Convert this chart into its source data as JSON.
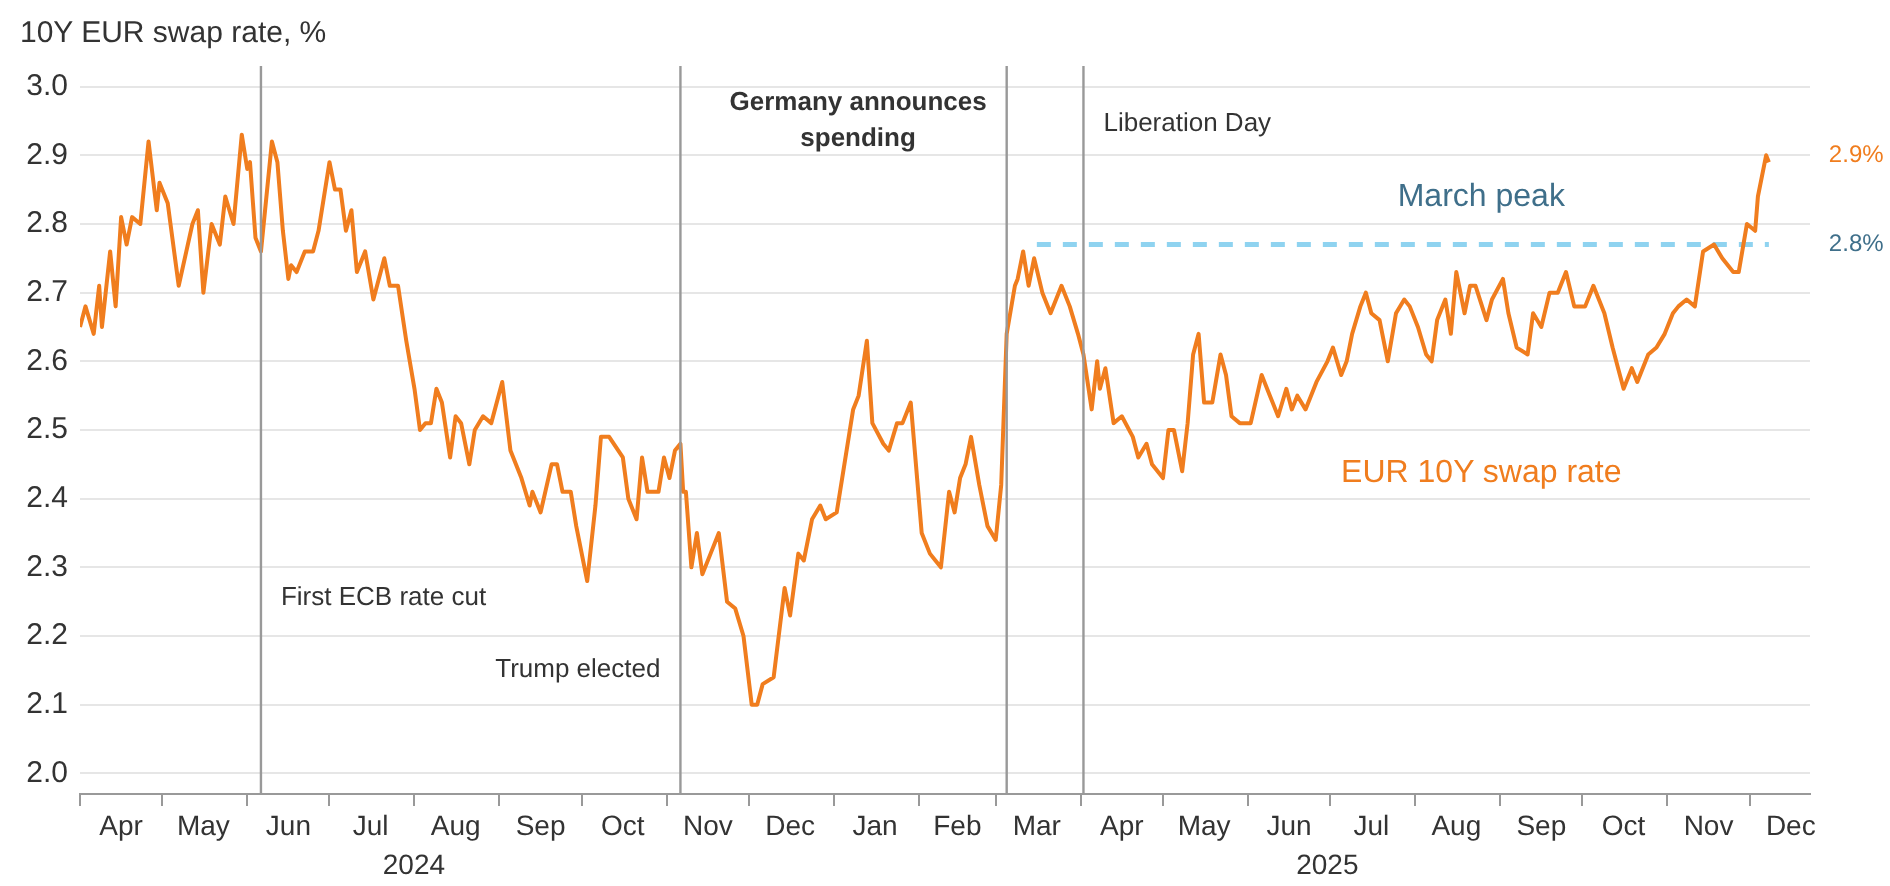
{
  "chart_data": {
    "type": "line",
    "ylabel": "10Y EUR swap rate, %",
    "legend": false,
    "grid": "y",
    "xlim": [
      "2024-04-01",
      "2025-12-23"
    ],
    "ylim": [
      1.97,
      3.03
    ],
    "yticks": [
      {
        "value": 2,
        "label": "2.0"
      },
      2.1,
      2.2,
      2.3,
      2.4,
      2.5,
      2.6,
      2.7,
      2.8,
      2.9,
      {
        "value": 3,
        "label": "3.0"
      }
    ],
    "xticks": [
      {
        "value": "2024-04-01",
        "label": null
      },
      {
        "value": "2024-04-16",
        "label": "Apr"
      },
      {
        "value": "2024-05-01",
        "label": null
      },
      {
        "value": "2024-05-16",
        "label": "May"
      },
      {
        "value": "2024-06-01",
        "label": null
      },
      {
        "value": "2024-06-16",
        "label": "Jun"
      },
      {
        "value": "2024-07-01",
        "label": null
      },
      {
        "value": "2024-07-16",
        "label": "Jul"
      },
      {
        "value": "2024-08-01",
        "label": null
      },
      {
        "value": "2024-08-16",
        "label": "Aug"
      },
      {
        "value": "2024-09-01",
        "label": null
      },
      {
        "value": "2024-09-16",
        "label": "Sep"
      },
      {
        "value": "2024-10-01",
        "label": null
      },
      {
        "value": "2024-10-16",
        "label": "Oct"
      },
      {
        "value": "2024-11-01",
        "label": null
      },
      {
        "value": "2024-11-16",
        "label": "Nov"
      },
      {
        "value": "2024-12-01",
        "label": null
      },
      {
        "value": "2024-12-16",
        "label": "Dec"
      },
      {
        "value": "2025-01-01",
        "label": null
      },
      {
        "value": "2025-01-16",
        "label": "Jan"
      },
      {
        "value": "2025-02-01",
        "label": null
      },
      {
        "value": "2025-02-15",
        "label": "Feb"
      },
      {
        "value": "2025-03-01",
        "label": null
      },
      {
        "value": "2025-03-16",
        "label": "Mar"
      },
      {
        "value": "2025-04-01",
        "label": null
      },
      {
        "value": "2025-04-16",
        "label": "Apr"
      },
      {
        "value": "2025-05-01",
        "label": null
      },
      {
        "value": "2025-05-16",
        "label": "May"
      },
      {
        "value": "2025-06-01",
        "label": null
      },
      {
        "value": "2025-06-16",
        "label": "Jun"
      },
      {
        "value": "2025-07-01",
        "label": null
      },
      {
        "value": "2025-07-16",
        "label": "Jul"
      },
      {
        "value": "2025-08-01",
        "label": null
      },
      {
        "value": "2025-08-16",
        "label": "Aug"
      },
      {
        "value": "2025-09-01",
        "label": null
      },
      {
        "value": "2025-09-16",
        "label": "Sep"
      },
      {
        "value": "2025-10-01",
        "label": null
      },
      {
        "value": "2025-10-16",
        "label": "Oct"
      },
      {
        "value": "2025-11-01",
        "label": null
      },
      {
        "value": "2025-11-16",
        "label": "Nov"
      },
      {
        "value": "2025-12-01",
        "label": null
      },
      {
        "value": "2025-12-16",
        "label": "Dec"
      }
    ],
    "ref_lines": [
      {
        "axis": "x",
        "value": "2024-06-06",
        "label": "First ECB rate cut",
        "color": "#999999"
      },
      {
        "axis": "x",
        "value": "2024-11-06",
        "label": "Trump elected",
        "color": "#999999"
      },
      {
        "axis": "x",
        "value": "2025-03-05",
        "label": "Germany announces spending",
        "color": "#999999"
      },
      {
        "axis": "x",
        "value": "2025-04-02",
        "label": "Liberation Day",
        "color": "#999999"
      }
    ],
    "annotations": [
      {
        "text": "2.9%",
        "x": "2025-12-08",
        "y": 2.9
      },
      {
        "text": "2.8%",
        "x": "2025-12-08",
        "y": 2.77
      },
      "2024",
      "2025"
    ],
    "series": [
      {
        "name": "EUR 10Y swap rate",
        "color": "#f07d1e",
        "line_style": "solid",
        "x": [
          "2024-04-01",
          "2024-04-03",
          "2024-04-06",
          "2024-04-08",
          "2024-04-09",
          "2024-04-12",
          "2024-04-14",
          "2024-04-16",
          "2024-04-18",
          "2024-04-20",
          "2024-04-23",
          "2024-04-26",
          "2024-04-29",
          "2024-04-30",
          "2024-05-03",
          "2024-05-07",
          "2024-05-12",
          "2024-05-14",
          "2024-05-16",
          "2024-05-19",
          "2024-05-22",
          "2024-05-24",
          "2024-05-27",
          "2024-05-30",
          "2024-06-01",
          "2024-06-02",
          "2024-06-04",
          "2024-06-06",
          "2024-06-10",
          "2024-06-12",
          "2024-06-14",
          "2024-06-16",
          "2024-06-17",
          "2024-06-19",
          "2024-06-22",
          "2024-06-25",
          "2024-06-27",
          "2024-07-01",
          "2024-07-03",
          "2024-07-05",
          "2024-07-07",
          "2024-07-09",
          "2024-07-11",
          "2024-07-14",
          "2024-07-17",
          "2024-07-21",
          "2024-07-23",
          "2024-07-26",
          "2024-07-29",
          "2024-08-01",
          "2024-08-03",
          "2024-08-05",
          "2024-08-07",
          "2024-08-09",
          "2024-08-11",
          "2024-08-14",
          "2024-08-16",
          "2024-08-18",
          "2024-08-21",
          "2024-08-23",
          "2024-08-26",
          "2024-08-29",
          "2024-09-02",
          "2024-09-05",
          "2024-09-09",
          "2024-09-12",
          "2024-09-13",
          "2024-09-16",
          "2024-09-20",
          "2024-09-22",
          "2024-09-24",
          "2024-09-27",
          "2024-09-29",
          "2024-10-03",
          "2024-10-06",
          "2024-10-08",
          "2024-10-11",
          "2024-10-16",
          "2024-10-18",
          "2024-10-21",
          "2024-10-23",
          "2024-10-25",
          "2024-10-29",
          "2024-10-31",
          "2024-11-02",
          "2024-11-04",
          "2024-11-06",
          "2024-11-07",
          "2024-11-08",
          "2024-11-10",
          "2024-11-12",
          "2024-11-14",
          "2024-11-17",
          "2024-11-20",
          "2024-11-23",
          "2024-11-26",
          "2024-11-29",
          "2024-12-02",
          "2024-12-04",
          "2024-12-06",
          "2024-12-10",
          "2024-12-14",
          "2024-12-16",
          "2024-12-19",
          "2024-12-21",
          "2024-12-24",
          "2024-12-27",
          "2024-12-29",
          "2025-01-02",
          "2025-01-04",
          "2025-01-08",
          "2025-01-10",
          "2025-01-13",
          "2025-01-15",
          "2025-01-19",
          "2025-01-21",
          "2025-01-24",
          "2025-01-26",
          "2025-01-29",
          "2025-02-02",
          "2025-02-05",
          "2025-02-07",
          "2025-02-09",
          "2025-02-12",
          "2025-02-14",
          "2025-02-16",
          "2025-02-18",
          "2025-02-20",
          "2025-02-23",
          "2025-02-26",
          "2025-03-01",
          "2025-03-03",
          "2025-03-05",
          "2025-03-08",
          "2025-03-09",
          "2025-03-11",
          "2025-03-13",
          "2025-03-15",
          "2025-03-18",
          "2025-03-21",
          "2025-03-25",
          "2025-03-28",
          "2025-03-31",
          "2025-04-02",
          "2025-04-05",
          "2025-04-07",
          "2025-04-08",
          "2025-04-10",
          "2025-04-13",
          "2025-04-16",
          "2025-04-20",
          "2025-04-22",
          "2025-04-25",
          "2025-04-27",
          "2025-05-01",
          "2025-05-03",
          "2025-05-05",
          "2025-05-08",
          "2025-05-10",
          "2025-05-12",
          "2025-05-14",
          "2025-05-16",
          "2025-05-19",
          "2025-05-22",
          "2025-05-24",
          "2025-05-26",
          "2025-05-29",
          "2025-06-02",
          "2025-06-06",
          "2025-06-09",
          "2025-06-12",
          "2025-06-15",
          "2025-06-17",
          "2025-06-19",
          "2025-06-22",
          "2025-06-26",
          "2025-06-30",
          "2025-07-02",
          "2025-07-05",
          "2025-07-07",
          "2025-07-09",
          "2025-07-12",
          "2025-07-14",
          "2025-07-16",
          "2025-07-19",
          "2025-07-22",
          "2025-07-25",
          "2025-07-28",
          "2025-07-30",
          "2025-08-02",
          "2025-08-05",
          "2025-08-07",
          "2025-08-09",
          "2025-08-12",
          "2025-08-14",
          "2025-08-16",
          "2025-08-19",
          "2025-08-21",
          "2025-08-23",
          "2025-08-27",
          "2025-08-29",
          "2025-09-02",
          "2025-09-04",
          "2025-09-07",
          "2025-09-11",
          "2025-09-13",
          "2025-09-16",
          "2025-09-19",
          "2025-09-22",
          "2025-09-25",
          "2025-09-28",
          "2025-10-02",
          "2025-10-05",
          "2025-10-09",
          "2025-10-12",
          "2025-10-14",
          "2025-10-16",
          "2025-10-19",
          "2025-10-21",
          "2025-10-25",
          "2025-10-28",
          "2025-10-31",
          "2025-11-03",
          "2025-11-05",
          "2025-11-08",
          "2025-11-11",
          "2025-11-14",
          "2025-11-18",
          "2025-11-21",
          "2025-11-25",
          "2025-11-27",
          "2025-11-30",
          "2025-12-03",
          "2025-12-04",
          "2025-12-07",
          "2025-12-08"
        ],
        "values": [
          2.65,
          2.68,
          2.64,
          2.71,
          2.65,
          2.76,
          2.68,
          2.81,
          2.77,
          2.81,
          2.8,
          2.92,
          2.82,
          2.86,
          2.83,
          2.71,
          2.8,
          2.82,
          2.7,
          2.8,
          2.77,
          2.84,
          2.8,
          2.93,
          2.88,
          2.89,
          2.78,
          2.76,
          2.92,
          2.89,
          2.79,
          2.72,
          2.74,
          2.73,
          2.76,
          2.76,
          2.79,
          2.89,
          2.85,
          2.85,
          2.79,
          2.82,
          2.73,
          2.76,
          2.69,
          2.75,
          2.71,
          2.71,
          2.63,
          2.56,
          2.5,
          2.51,
          2.51,
          2.56,
          2.54,
          2.46,
          2.52,
          2.51,
          2.45,
          2.5,
          2.52,
          2.51,
          2.57,
          2.47,
          2.43,
          2.39,
          2.41,
          2.38,
          2.45,
          2.45,
          2.41,
          2.41,
          2.36,
          2.28,
          2.39,
          2.49,
          2.49,
          2.46,
          2.4,
          2.37,
          2.46,
          2.41,
          2.41,
          2.46,
          2.43,
          2.47,
          2.48,
          2.41,
          2.41,
          2.3,
          2.35,
          2.29,
          2.32,
          2.35,
          2.25,
          2.24,
          2.2,
          2.1,
          2.1,
          2.13,
          2.14,
          2.27,
          2.23,
          2.32,
          2.31,
          2.37,
          2.39,
          2.37,
          2.38,
          2.43,
          2.53,
          2.55,
          2.63,
          2.51,
          2.48,
          2.47,
          2.51,
          2.51,
          2.54,
          2.35,
          2.32,
          2.31,
          2.3,
          2.41,
          2.38,
          2.43,
          2.45,
          2.49,
          2.42,
          2.36,
          2.34,
          2.42,
          2.64,
          2.71,
          2.72,
          2.76,
          2.71,
          2.75,
          2.7,
          2.67,
          2.71,
          2.68,
          2.64,
          2.61,
          2.53,
          2.6,
          2.56,
          2.59,
          2.51,
          2.52,
          2.49,
          2.46,
          2.48,
          2.45,
          2.43,
          2.5,
          2.5,
          2.44,
          2.51,
          2.61,
          2.64,
          2.54,
          2.54,
          2.61,
          2.58,
          2.52,
          2.51,
          2.51,
          2.58,
          2.55,
          2.52,
          2.56,
          2.53,
          2.55,
          2.53,
          2.57,
          2.6,
          2.62,
          2.58,
          2.6,
          2.64,
          2.68,
          2.7,
          2.67,
          2.66,
          2.6,
          2.67,
          2.69,
          2.68,
          2.65,
          2.61,
          2.6,
          2.66,
          2.69,
          2.64,
          2.73,
          2.67,
          2.71,
          2.71,
          2.66,
          2.69,
          2.72,
          2.67,
          2.62,
          2.61,
          2.67,
          2.65,
          2.7,
          2.7,
          2.73,
          2.68,
          2.68,
          2.71,
          2.67,
          2.62,
          2.59,
          2.56,
          2.59,
          2.57,
          2.61,
          2.62,
          2.64,
          2.67,
          2.68,
          2.69,
          2.68,
          2.76,
          2.77,
          2.75,
          2.73,
          2.73,
          2.8,
          2.79,
          2.84,
          2.9,
          2.89
        ]
      },
      {
        "name": "March peak",
        "color": "#8fd3f0",
        "line_style": "dashed",
        "x": [
          "2025-03-16",
          "2025-12-08"
        ],
        "values": [
          2.77,
          2.77
        ]
      }
    ]
  }
}
